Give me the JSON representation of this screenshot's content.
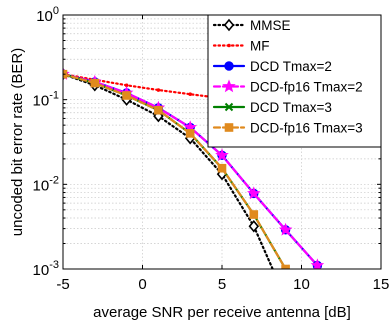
{
  "chart_data": {
    "type": "line",
    "title": "",
    "xlabel": "average SNR per receive antenna [dB]",
    "ylabel": "uncoded bit error rate (BER)",
    "xlim": [
      -5,
      15
    ],
    "ylim": [
      0.001,
      1
    ],
    "yscale": "log",
    "grid": true,
    "legend_position": "top-right",
    "x_ticks": [
      -5,
      0,
      5,
      10,
      15
    ],
    "x_tick_labels": [
      "-5",
      "0",
      "5",
      "10",
      "15"
    ],
    "y_ticks": [
      0.001,
      0.01,
      0.1,
      1
    ],
    "y_tick_labels": [
      {
        "base": "10",
        "exp": "-3"
      },
      {
        "base": "10",
        "exp": "-2"
      },
      {
        "base": "10",
        "exp": "-1"
      },
      {
        "base": "10",
        "exp": "0"
      }
    ],
    "series": [
      {
        "name": "MMSE",
        "color": "#000000",
        "line": "dotted",
        "marker": "diamond",
        "x": [
          -5,
          -3,
          -1,
          1,
          3,
          5,
          7,
          9
        ],
        "y": [
          0.2,
          0.148,
          0.1,
          0.064,
          0.035,
          0.0132,
          0.0032,
          0.00045
        ]
      },
      {
        "name": "MF",
        "color": "#ff0000",
        "line": "dotted",
        "marker": "dot",
        "x": [
          -5,
          -3,
          -1,
          1,
          3,
          5,
          7,
          9,
          11,
          13,
          15
        ],
        "y": [
          0.2,
          0.172,
          0.148,
          0.13,
          0.116,
          0.104,
          0.095,
          0.088,
          0.082,
          0.077,
          0.074
        ]
      },
      {
        "name": "DCD Tmax=2",
        "color": "#0000ff",
        "line": "solid",
        "marker": "circle",
        "x": [
          -5,
          -3,
          -1,
          1,
          3,
          5,
          7,
          9,
          11
        ],
        "y": [
          0.2,
          0.162,
          0.12,
          0.08,
          0.047,
          0.022,
          0.0078,
          0.0029,
          0.0011
        ]
      },
      {
        "name": "DCD-fp16 Tmax=2",
        "color": "#ff00ff",
        "line": "dashed",
        "marker": "star",
        "x": [
          -5,
          -3,
          -1,
          1,
          3,
          5,
          7,
          9,
          11
        ],
        "y": [
          0.2,
          0.162,
          0.12,
          0.08,
          0.047,
          0.022,
          0.0078,
          0.0029,
          0.0011
        ]
      },
      {
        "name": "DCD Tmax=3",
        "color": "#008000",
        "line": "solid",
        "marker": "x",
        "x": [
          -5,
          -3,
          -1,
          1,
          3,
          5,
          7,
          9
        ],
        "y": [
          0.2,
          0.157,
          0.112,
          0.075,
          0.04,
          0.0155,
          0.0044,
          0.001
        ]
      },
      {
        "name": "DCD-fp16 Tmax=3",
        "color": "#e08a1e",
        "line": "dashed",
        "marker": "square",
        "x": [
          -5,
          -3,
          -1,
          1,
          3,
          5,
          7,
          9
        ],
        "y": [
          0.2,
          0.157,
          0.112,
          0.075,
          0.04,
          0.0155,
          0.0044,
          0.001
        ]
      }
    ]
  }
}
